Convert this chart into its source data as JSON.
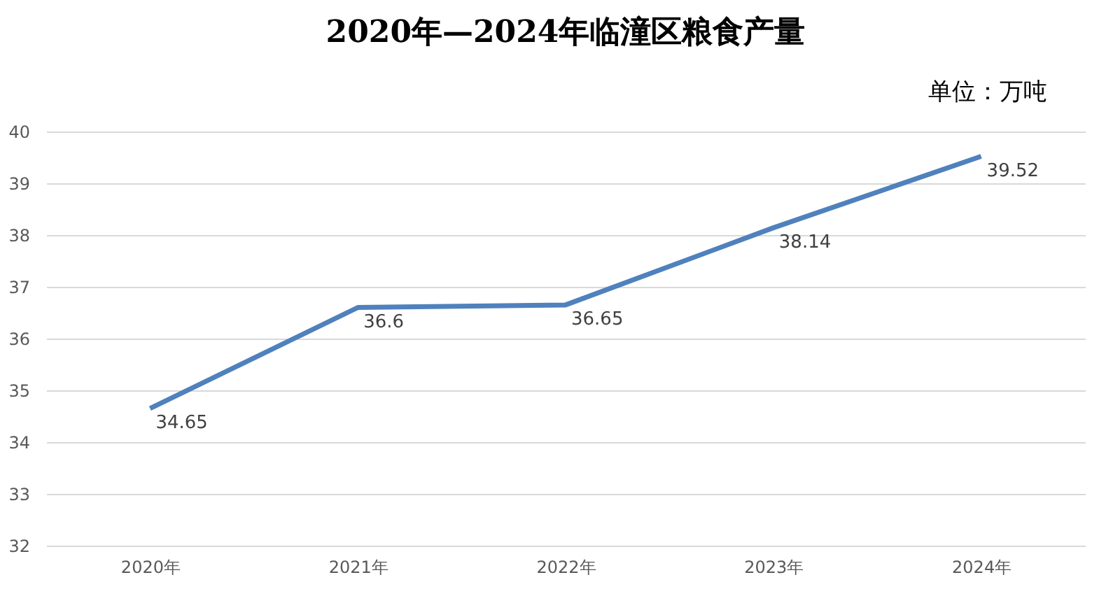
{
  "chart_data": {
    "type": "line",
    "title": "2020年—2024年临潼区粮食产量",
    "annotations": [
      "单位：万吨"
    ],
    "categories": [
      "2020年",
      "2021年",
      "2022年",
      "2023年",
      "2024年"
    ],
    "series": [
      {
        "color": "#4f81bd",
        "values": [
          34.65,
          36.6,
          36.65,
          38.14,
          39.52
        ]
      }
    ],
    "ylim": [
      32,
      40
    ],
    "yticks": [
      32,
      33,
      34,
      35,
      36,
      37,
      38,
      39,
      40
    ],
    "grid": "y",
    "marker": "none",
    "line_style": "solid",
    "data_labels": true
  }
}
